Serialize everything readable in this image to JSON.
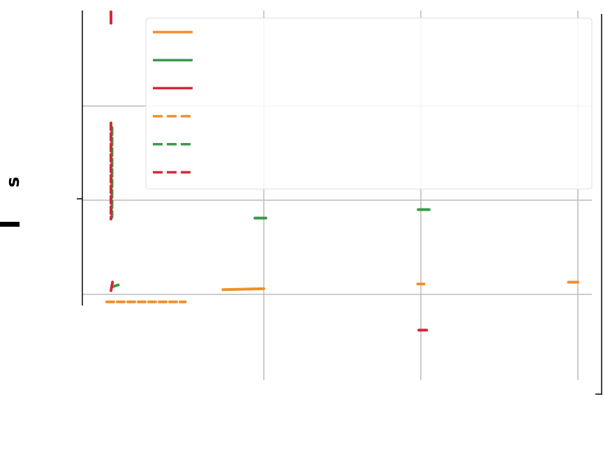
{
  "chart_data": {
    "type": "line",
    "title": "",
    "xlabel": "",
    "ylabel": "s",
    "grid": true,
    "legend_placement": "top-right",
    "xlim": [
      -0.15,
      3.15
    ],
    "ylim": [
      -1.0,
      3.0
    ],
    "series": [
      {
        "color": "#f28e2b",
        "style": "solid",
        "points": [
          [
            0.74,
            0.05
          ],
          [
            1.0,
            0.06
          ],
          [
            1.98,
            0.11
          ],
          [
            2.02,
            0.11
          ],
          [
            2.94,
            0.13
          ],
          [
            3.0,
            0.13
          ]
        ]
      },
      {
        "color": "#3a9a48",
        "style": "solid",
        "points": [
          [
            0.93,
            0.81
          ],
          [
            1.0,
            0.81
          ],
          [
            1.97,
            0.9
          ],
          [
            2.04,
            0.9
          ],
          [
            0.02,
            0.08
          ],
          [
            0.06,
            0.1
          ]
        ]
      },
      {
        "color": "#d62839",
        "style": "solid",
        "points": [
          [
            0.0,
            2.88
          ],
          [
            0.0,
            3.0
          ],
          [
            1.96,
            -0.38
          ],
          [
            2.01,
            -0.38
          ],
          [
            0.0,
            0.04
          ],
          [
            0.01,
            0.13
          ]
        ]
      },
      {
        "color": "#f28e2b",
        "style": "dashed",
        "points": [
          [
            0.0,
            -0.08
          ],
          [
            0.5,
            -0.08
          ]
        ]
      },
      {
        "color": "#3a9a48",
        "style": "dashed",
        "points": [
          [
            0.02,
            1.77
          ],
          [
            0.02,
            0.82
          ]
        ]
      },
      {
        "color": "#d62839",
        "style": "dashed",
        "points": [
          [
            0.0,
            1.82
          ],
          [
            0.0,
            0.8
          ]
        ]
      }
    ]
  }
}
